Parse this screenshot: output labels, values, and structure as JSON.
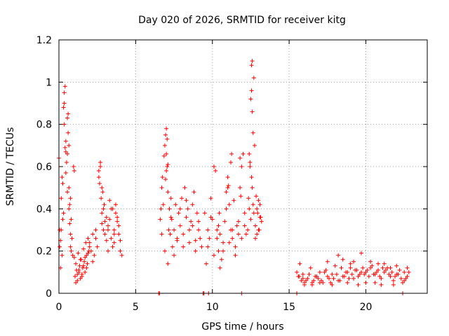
{
  "chart_data": {
    "type": "scatter",
    "title": "Day 020 of 2026, SRMTID for receiver kitg",
    "xlabel": "GPS time / hours",
    "ylabel": "SRMTID / TECUs",
    "xlim": [
      0,
      24
    ],
    "ylim": [
      0,
      1.2
    ],
    "x_ticks": [
      0,
      5,
      10,
      15,
      20
    ],
    "x_tick_labels": [
      "0",
      "5",
      "10",
      "15",
      "20"
    ],
    "y_ticks": [
      0,
      0.2,
      0.4,
      0.6,
      0.8,
      1.0,
      1.2
    ],
    "y_tick_labels": [
      "0",
      "0.2",
      "0.4",
      "0.6",
      "0.8",
      "1",
      "1.2"
    ],
    "grid": true,
    "marker": "+",
    "series_color": "#ff0000",
    "series": [
      {
        "name": "SRMTID",
        "x": [
          0.0,
          0.05,
          0.1,
          0.15,
          0.2,
          0.25,
          0.3,
          0.35,
          0.4,
          0.45,
          0.5,
          0.55,
          0.6,
          0.65,
          0.7,
          0.75,
          0.8,
          0.85,
          0.9,
          0.95,
          1.0,
          0.3,
          0.35,
          0.4,
          0.45,
          0.55,
          0.6,
          0.65,
          0.7,
          0.75,
          0.8,
          0.05,
          0.1,
          0.15,
          0.2,
          0.25,
          0.35,
          0.45,
          0.55,
          0.65,
          0.75,
          1.0,
          1.05,
          1.1,
          1.15,
          1.2,
          1.25,
          1.3,
          1.35,
          1.4,
          1.45,
          1.5,
          1.55,
          1.6,
          1.65,
          1.7,
          1.75,
          1.8,
          1.85,
          1.9,
          1.95,
          2.0,
          1.1,
          1.2,
          1.3,
          1.4,
          1.5,
          1.6,
          1.7,
          1.8,
          1.9,
          2.0,
          2.1,
          2.2,
          2.3,
          2.4,
          2.5,
          2.6,
          2.7,
          2.8,
          2.9,
          3.0,
          2.6,
          2.65,
          2.7,
          2.75,
          2.8,
          2.85,
          2.9,
          2.95,
          3.0,
          3.1,
          3.2,
          3.3,
          3.4,
          3.5,
          3.6,
          3.7,
          3.8,
          3.9,
          4.0,
          4.1,
          3.1,
          3.2,
          3.3,
          3.4,
          3.5,
          3.6,
          3.7,
          3.8,
          3.9,
          4.0,
          2.2,
          2.4,
          2.8,
          3.2,
          3.6,
          6.6,
          6.65,
          6.7,
          6.75,
          6.8,
          6.85,
          6.9,
          6.95,
          7.0,
          7.05,
          7.1,
          7.15,
          7.2,
          7.25,
          7.3,
          7.35,
          7.4,
          7.5,
          7.6,
          7.7,
          7.8,
          7.9,
          8.0,
          8.1,
          8.2,
          8.3,
          8.4,
          8.5,
          8.6,
          8.7,
          8.8,
          8.9,
          9.0,
          9.1,
          9.2,
          9.3,
          6.7,
          6.9,
          7.1,
          7.3,
          7.5,
          7.7,
          7.9,
          8.1,
          8.3,
          8.5,
          8.7,
          8.9,
          9.1,
          7.0,
          7.05,
          7.1,
          6.95,
          7.0,
          9.5,
          9.6,
          9.7,
          9.8,
          9.9,
          10.0,
          10.1,
          10.2,
          10.3,
          10.4,
          10.5,
          10.6,
          10.7,
          10.8,
          10.9,
          11.0,
          11.1,
          11.2,
          11.3,
          11.4,
          11.5,
          11.6,
          11.7,
          11.8,
          11.9,
          12.0,
          12.1,
          12.2,
          9.7,
          9.9,
          10.1,
          10.3,
          10.5,
          10.7,
          10.9,
          11.1,
          11.3,
          11.5,
          11.7,
          11.9,
          12.1,
          10.4,
          10.45,
          11.0,
          11.05,
          11.2,
          11.25,
          11.8,
          11.85,
          12.3,
          12.35,
          12.4,
          12.45,
          12.5,
          12.55,
          12.6,
          12.65,
          12.7,
          12.75,
          12.8,
          12.85,
          12.9,
          12.95,
          13.0,
          13.05,
          13.1,
          13.15,
          13.2,
          12.5,
          12.55,
          12.55,
          12.6,
          12.6,
          12.65,
          12.7,
          12.4,
          12.45,
          12.8,
          12.9,
          13.0,
          13.1,
          15.5,
          15.6,
          15.7,
          15.8,
          15.9,
          16.0,
          16.2,
          16.4,
          16.6,
          16.8,
          17.0,
          17.2,
          17.4,
          17.6,
          17.8,
          18.0,
          18.2,
          18.4,
          18.6,
          18.8,
          19.0,
          19.2,
          19.4,
          19.6,
          19.8,
          20.0,
          20.2,
          20.4,
          20.6,
          20.8,
          21.0,
          21.2,
          21.4,
          21.6,
          21.8,
          22.0,
          22.2,
          22.4,
          22.6,
          22.8,
          15.65,
          15.9,
          16.1,
          16.3,
          16.5,
          16.7,
          16.9,
          17.1,
          17.3,
          17.5,
          17.7,
          17.9,
          18.1,
          18.3,
          18.5,
          18.7,
          18.9,
          19.1,
          19.3,
          19.5,
          19.7,
          19.9,
          20.1,
          20.3,
          20.5,
          20.7,
          20.9,
          21.1,
          21.3,
          21.5,
          21.7,
          21.9,
          22.1,
          22.3,
          22.5,
          22.7,
          17.5,
          18.2,
          18.5,
          19.0,
          19.2,
          19.7,
          20.3,
          20.8,
          21.2,
          21.6,
          22.0,
          22.5,
          22.7,
          16.0,
          16.5,
          17.0,
          17.8,
          18.8,
          19.5,
          20.0,
          20.6,
          21.0,
          21.8,
          6.5,
          6.55,
          9.4,
          9.45,
          9.75,
          11.9,
          15.5,
          22.4
        ],
        "y": [
          0.64,
          0.3,
          0.25,
          0.45,
          0.55,
          0.52,
          0.38,
          0.95,
          0.98,
          0.72,
          0.62,
          0.48,
          0.85,
          0.7,
          0.42,
          0.28,
          0.35,
          0.26,
          0.18,
          0.6,
          0.58,
          0.88,
          0.9,
          0.69,
          0.67,
          0.83,
          0.76,
          0.4,
          0.33,
          0.22,
          0.2,
          0.22,
          0.12,
          0.3,
          0.18,
          0.35,
          0.8,
          0.57,
          0.66,
          0.5,
          0.45,
          0.17,
          0.08,
          0.14,
          0.11,
          0.06,
          0.19,
          0.1,
          0.13,
          0.07,
          0.16,
          0.09,
          0.12,
          0.21,
          0.15,
          0.1,
          0.24,
          0.18,
          0.14,
          0.26,
          0.2,
          0.22,
          0.05,
          0.09,
          0.11,
          0.16,
          0.08,
          0.13,
          0.17,
          0.12,
          0.19,
          0.24,
          0.2,
          0.28,
          0.18,
          0.3,
          0.22,
          0.55,
          0.6,
          0.5,
          0.4,
          0.34,
          0.58,
          0.52,
          0.62,
          0.45,
          0.38,
          0.48,
          0.3,
          0.42,
          0.28,
          0.36,
          0.32,
          0.44,
          0.26,
          0.4,
          0.3,
          0.38,
          0.34,
          0.28,
          0.25,
          0.18,
          0.25,
          0.3,
          0.35,
          0.4,
          0.22,
          0.28,
          0.42,
          0.36,
          0.32,
          0.2,
          0.15,
          0.26,
          0.33,
          0.2,
          0.24,
          0.35,
          0.4,
          0.5,
          0.55,
          0.42,
          0.65,
          0.7,
          0.75,
          0.78,
          0.6,
          0.48,
          0.3,
          0.4,
          0.28,
          0.45,
          0.35,
          0.22,
          0.3,
          0.42,
          0.25,
          0.38,
          0.32,
          0.45,
          0.28,
          0.5,
          0.36,
          0.4,
          0.3,
          0.34,
          0.42,
          0.48,
          0.25,
          0.38,
          0.3,
          0.26,
          0.22,
          0.28,
          0.2,
          0.14,
          0.36,
          0.18,
          0.26,
          0.4,
          0.22,
          0.44,
          0.24,
          0.32,
          0.2,
          0.34,
          0.66,
          0.73,
          0.61,
          0.54,
          0.58,
          0.38,
          0.14,
          0.3,
          0.26,
          0.45,
          0.35,
          0.6,
          0.58,
          0.3,
          0.2,
          0.28,
          0.16,
          0.24,
          0.34,
          0.48,
          0.5,
          0.42,
          0.3,
          0.26,
          0.44,
          0.22,
          0.32,
          0.28,
          0.64,
          0.6,
          0.66,
          0.38,
          0.28,
          0.22,
          0.36,
          0.18,
          0.26,
          0.12,
          0.2,
          0.4,
          0.24,
          0.3,
          0.18,
          0.34,
          0.26,
          0.32,
          0.32,
          0.38,
          0.55,
          0.51,
          0.62,
          0.66,
          0.5,
          0.46,
          0.3,
          0.45,
          0.4,
          0.6,
          0.35,
          0.55,
          0.5,
          0.42,
          0.38,
          0.7,
          0.32,
          0.46,
          0.28,
          0.38,
          0.44,
          0.3,
          0.42,
          0.36,
          0.34,
          0.92,
          0.96,
          1.08,
          1.1,
          0.86,
          0.76,
          1.02,
          0.66,
          0.62,
          0.26,
          0.4,
          0.3,
          0.36,
          0.1,
          0.08,
          0.14,
          0.06,
          0.09,
          0.05,
          0.07,
          0.12,
          0.06,
          0.08,
          0.1,
          0.05,
          0.11,
          0.07,
          0.09,
          0.13,
          0.06,
          0.12,
          0.08,
          0.1,
          0.14,
          0.07,
          0.11,
          0.09,
          0.12,
          0.1,
          0.08,
          0.13,
          0.09,
          0.11,
          0.07,
          0.1,
          0.12,
          0.08,
          0.06,
          0.09,
          0.11,
          0.05,
          0.07,
          0.1,
          0.08,
          0.07,
          0.06,
          0.09,
          0.05,
          0.08,
          0.07,
          0.06,
          0.1,
          0.08,
          0.05,
          0.07,
          0.09,
          0.06,
          0.08,
          0.1,
          0.07,
          0.09,
          0.11,
          0.08,
          0.1,
          0.09,
          0.11,
          0.12,
          0.09,
          0.1,
          0.08,
          0.12,
          0.11,
          0.09,
          0.1,
          0.08,
          0.09,
          0.07,
          0.06,
          0.08,
          0.15,
          0.18,
          0.16,
          0.12,
          0.15,
          0.19,
          0.15,
          0.14,
          0.14,
          0.12,
          0.13,
          0.1,
          0.12,
          0.04,
          0.04,
          0.05,
          0.04,
          0.05,
          0.04,
          0.05,
          0.05,
          0.04,
          0.04,
          0.0,
          0.0,
          0.0,
          0.0,
          0.0,
          0.0,
          0.0,
          0.0
        ]
      }
    ]
  }
}
